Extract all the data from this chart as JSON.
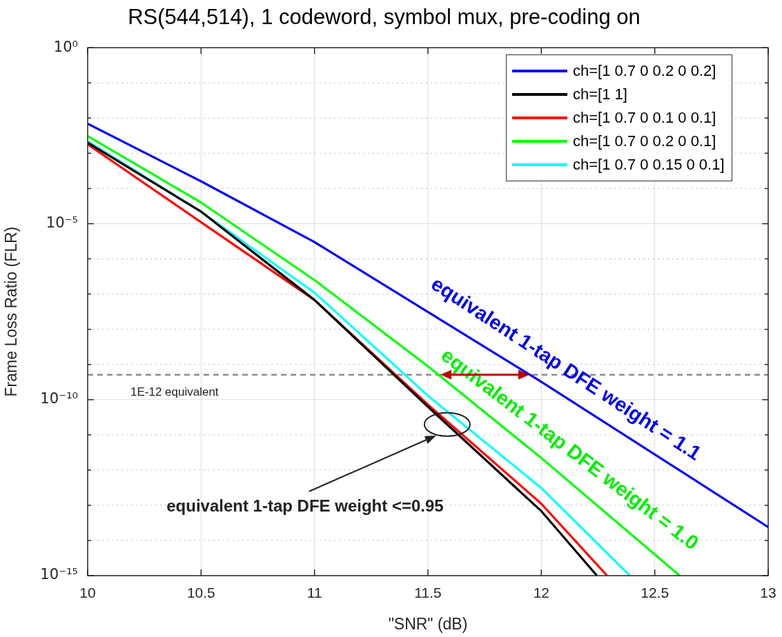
{
  "chart_data": {
    "type": "line",
    "title": "RS(544,514), 1 codeword, symbol mux, pre-coding on",
    "xlabel": "\"SNR\" (dB)",
    "ylabel": "Frame Loss Ratio (FLR)",
    "log": "y",
    "grid": true,
    "legend": "top right",
    "marker": "none",
    "line_style": "solid",
    "xlim": [
      10,
      13
    ],
    "xticks": [
      10,
      10.5,
      11,
      11.5,
      12,
      12.5,
      13
    ],
    "ylim": [
      1e-15,
      1
    ],
    "yticks": [
      {
        "value": 1,
        "label": "10⁰"
      },
      {
        "value": 0.1,
        "label": null
      },
      {
        "value": 0.01,
        "label": null
      },
      {
        "value": 0.001,
        "label": null
      },
      {
        "value": 0.0001,
        "label": null
      },
      {
        "value": 1e-05,
        "label": "10⁻⁵"
      },
      {
        "value": 1e-06,
        "label": null
      },
      {
        "value": 1e-07,
        "label": null
      },
      {
        "value": 1e-08,
        "label": null
      },
      {
        "value": 1e-09,
        "label": null
      },
      {
        "value": 1e-10,
        "label": "10⁻¹⁰"
      },
      {
        "value": 1e-11,
        "label": null
      },
      {
        "value": 1e-12,
        "label": null
      },
      {
        "value": 1e-13,
        "label": null
      },
      {
        "value": 1e-14,
        "label": null
      },
      {
        "value": 1e-15,
        "label": "10⁻¹⁵"
      }
    ],
    "series": [
      {
        "name": "ch=[1 0.7 0 0.2 0 0.2]",
        "color": "#0000ff",
        "x": [
          10,
          10.5,
          11,
          12,
          13
        ],
        "values": [
          0.0069,
          0.00016,
          3e-06,
          3.2e-10,
          2.4e-14
        ]
      },
      {
        "name": "ch=[1 1]",
        "color": "#000000",
        "x": [
          10,
          10.5,
          11,
          11.5,
          12,
          12.245
        ],
        "values": [
          0.002,
          2.2e-05,
          6.8e-08,
          6.3e-11,
          6.8e-14,
          1e-15
        ]
      },
      {
        "name": "ch=[1 0.7 0 0.1 0 0.1]",
        "color": "#ff0000",
        "x": [
          10,
          10.5,
          11,
          11.5,
          12,
          12.29
        ],
        "values": [
          0.0018,
          1.1e-05,
          6.8e-08,
          7.2e-11,
          1.1e-13,
          1e-15
        ]
      },
      {
        "name": "ch=[1 0.7 0 0.2 0 0.1]",
        "color": "#00ff00",
        "x": [
          10,
          10.5,
          11,
          11.5,
          12,
          12.61
        ],
        "values": [
          0.0031,
          4e-05,
          2.5e-07,
          8.9e-10,
          2.2e-12,
          1e-15
        ]
      },
      {
        "name": "ch=[1 0.7 0 0.15 0 0.1]",
        "color": "#00ffff",
        "x": [
          10,
          10.5,
          11,
          11.5,
          12,
          12.39
        ],
        "values": [
          0.0022,
          2.2e-05,
          1.1e-07,
          1.3e-10,
          3.1e-13,
          1e-15
        ]
      }
    ],
    "ref_lines": [
      {
        "axis": "y",
        "value": 5.1e-10,
        "label": "1E-12 equivalent",
        "color": "#808080",
        "line_style": "dashed"
      }
    ],
    "annotations": [
      {
        "text": "equivalent 1-tap DFE weight = 1.1",
        "x": 12.05,
        "y": 2e-10
      },
      {
        "text": "equivalent 1-tap DFE weight = 1.0",
        "x": 12.06,
        "y": 1.1e-12
      },
      "equivalent 1-tap DFE weight <=0.95"
    ]
  }
}
